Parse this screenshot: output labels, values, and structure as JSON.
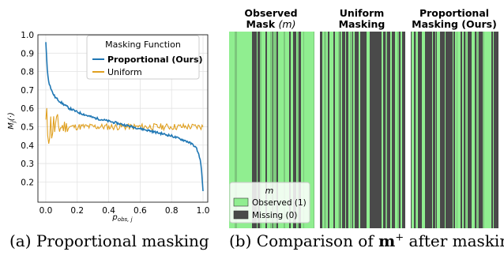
{
  "chart_data": [
    {
      "type": "line",
      "xlabel": "p_obs,j",
      "ylabel": "M_j(·)",
      "xlim": [
        -0.05,
        1.03
      ],
      "ylim": [
        0.09,
        1.0
      ],
      "xticks": [
        0.0,
        0.2,
        0.4,
        0.6,
        0.8,
        1.0
      ],
      "xtick_labels": [
        "0.0",
        "0.2",
        "0.4",
        "0.6",
        "0.8",
        "1.0"
      ],
      "yticks": [
        0.2,
        0.3,
        0.4,
        0.5,
        0.6,
        0.7,
        0.8,
        0.9,
        1.0
      ],
      "ytick_labels": [
        "0.2",
        "0.3",
        "0.4",
        "0.5",
        "0.6",
        "0.7",
        "0.8",
        "0.9",
        "1.0"
      ],
      "grid": true,
      "legend": {
        "title": "Masking Function",
        "placement": "top-right",
        "entries": [
          "Proportional (Ours)",
          "Uniform"
        ]
      },
      "series": [
        {
          "name": "Proportional (Ours)",
          "color": "#1f77b4",
          "x": [
            0.0,
            0.01,
            0.02,
            0.04,
            0.06,
            0.1,
            0.15,
            0.2,
            0.3,
            0.4,
            0.5,
            0.6,
            0.7,
            0.8,
            0.9,
            0.94,
            0.96,
            0.98,
            0.99,
            1.0
          ],
          "y": [
            0.96,
            0.8,
            0.74,
            0.69,
            0.66,
            0.63,
            0.6,
            0.58,
            0.55,
            0.53,
            0.51,
            0.49,
            0.47,
            0.45,
            0.42,
            0.4,
            0.38,
            0.33,
            0.27,
            0.15
          ]
        },
        {
          "name": "Uniform",
          "color": "#e0a020",
          "x": [
            0.0,
            1.0
          ],
          "y": [
            0.5,
            0.5
          ]
        }
      ]
    },
    {
      "type": "heatmap",
      "panels": [
        {
          "title_line1": "Observed",
          "title_line2": "Mask",
          "title_symbol": "(m)"
        },
        {
          "title_line1": "Uniform",
          "title_line2": "Masking",
          "title_symbol": ""
        },
        {
          "title_line1": "Proportional",
          "title_line2": "Masking (Ours)",
          "title_symbol": ""
        }
      ],
      "legend": {
        "title": "m",
        "placement": "bottom-left",
        "entries": [
          {
            "label": "Observed (1)",
            "color": "#90ee90"
          },
          {
            "label": "Missing (0)",
            "color": "#4a4a4a"
          }
        ]
      }
    }
  ],
  "captions": {
    "a": "(a) Proportional masking",
    "b_prefix": "(b) Comparison of",
    "b_symbol": "m",
    "b_sup": "+",
    "b_suffix": "after masking"
  }
}
